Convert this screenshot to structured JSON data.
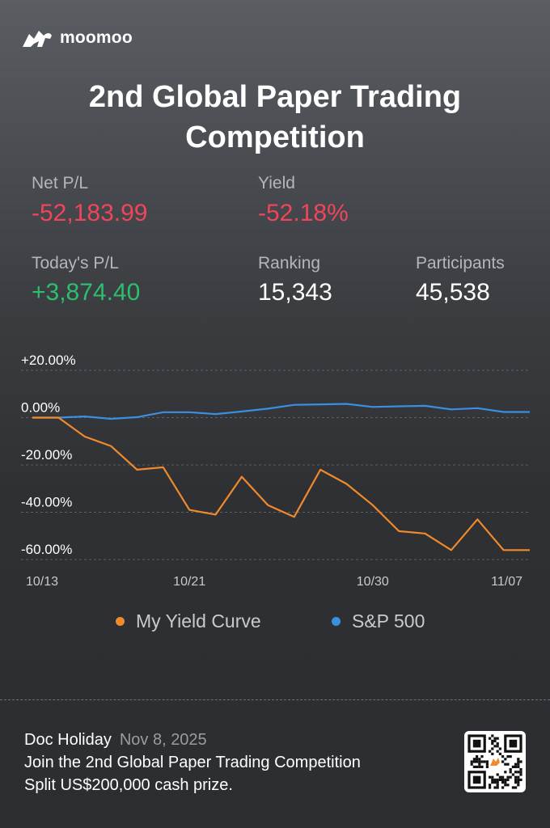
{
  "brand": {
    "name": "moomoo",
    "logo_icon": "moomoo-bull-icon"
  },
  "title": [
    "2nd Global Paper Trading",
    "Competition"
  ],
  "stats": {
    "net_pl": {
      "label": "Net P/L",
      "value": "-52,183.99"
    },
    "yield": {
      "label": "Yield",
      "value": "-52.18%"
    },
    "today_pl": {
      "label": "Today's P/L",
      "value": "+3,874.40"
    },
    "ranking": {
      "label": "Ranking",
      "value": "15,343"
    },
    "participants": {
      "label": "Participants",
      "value": "45,538"
    }
  },
  "colors": {
    "negative": "#f0455a",
    "positive": "#2bbf6e",
    "my_curve": "#f08a2c",
    "sp500": "#3b8fe0"
  },
  "chart_data": {
    "type": "line",
    "y_ticks": [
      "+20.00%",
      "0.00%",
      "-20.00%",
      "-40.00%",
      "-60.00%"
    ],
    "y_tick_values": [
      20,
      0,
      -20,
      -40,
      -60
    ],
    "ylim": [
      -60,
      20
    ],
    "x_tick_labels": [
      "10/13",
      "10/21",
      "10/30",
      "11/07"
    ],
    "x_tick_index": [
      0,
      6,
      13,
      19
    ],
    "grid": true,
    "legend_placement": "bottom",
    "series": [
      {
        "name": "My Yield Curve",
        "color": "#f08a2c",
        "values": [
          0,
          0,
          -8,
          -12,
          -22,
          -21,
          -39,
          -41,
          -25,
          -37,
          -42,
          -22,
          -28,
          -37,
          -48,
          -49,
          -56,
          -43,
          -56,
          -56
        ]
      },
      {
        "name": "S&P 500",
        "color": "#3b8fe0",
        "values": [
          0,
          0,
          0.5,
          -0.5,
          0.2,
          2.3,
          2.3,
          1.5,
          2.6,
          3.8,
          5.4,
          5.6,
          5.8,
          4.5,
          4.8,
          5.0,
          3.5,
          4.0,
          2.4,
          2.4
        ]
      }
    ]
  },
  "footer": {
    "user": "Doc Holiday",
    "date": "Nov 8, 2025",
    "line2": "Join the 2nd Global Paper Trading Competition",
    "line3": "Split US$200,000 cash prize."
  },
  "qr_icon": "qr-code-icon"
}
